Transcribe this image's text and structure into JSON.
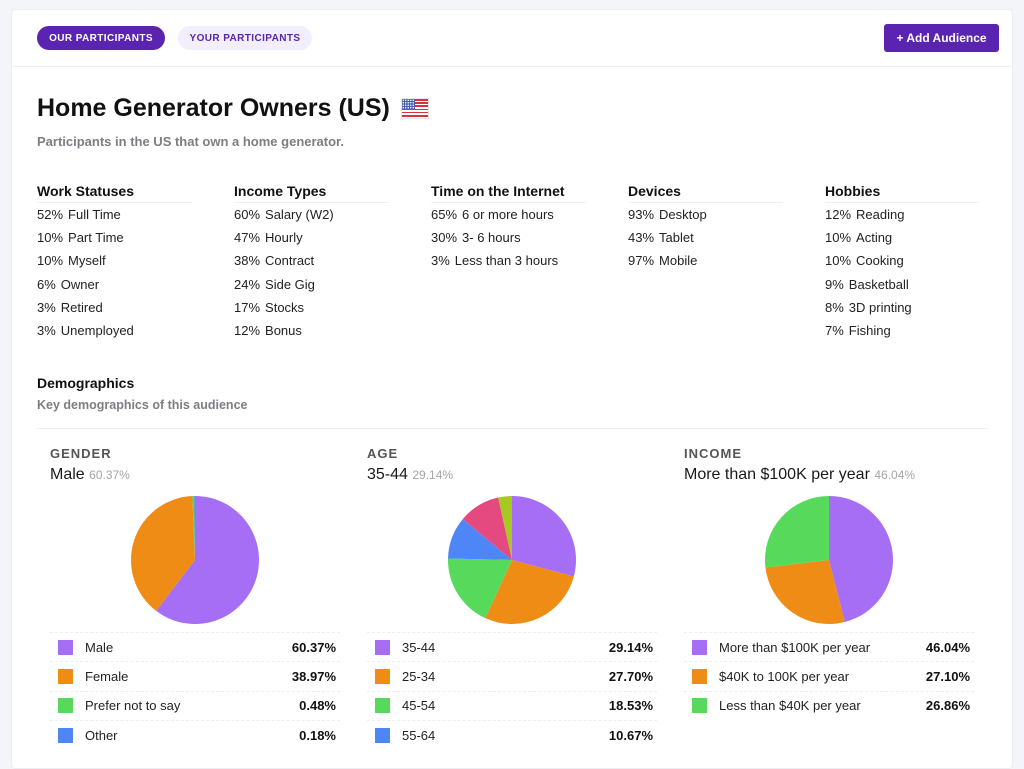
{
  "tabs": [
    {
      "label": "OUR PARTICIPANTS",
      "active": true
    },
    {
      "label": "YOUR PARTICIPANTS",
      "active": false
    }
  ],
  "add_audience_label": "+ Add Audience",
  "title": "Home Generator Owners (US)",
  "flag_icon": "us-flag",
  "subtitle": "Participants in the US that own a home generator.",
  "stats": [
    {
      "heading": "Work Statuses",
      "items": [
        {
          "pct": "52%",
          "label": "Full Time"
        },
        {
          "pct": "10%",
          "label": "Part Time"
        },
        {
          "pct": "10%",
          "label": "Myself"
        },
        {
          "pct": "6%",
          "label": "Owner"
        },
        {
          "pct": "3%",
          "label": "Retired"
        },
        {
          "pct": "3%",
          "label": "Unemployed"
        }
      ]
    },
    {
      "heading": "Income Types",
      "items": [
        {
          "pct": "60%",
          "label": "Salary (W2)"
        },
        {
          "pct": "47%",
          "label": "Hourly"
        },
        {
          "pct": "38%",
          "label": "Contract"
        },
        {
          "pct": "24%",
          "label": "Side Gig"
        },
        {
          "pct": "17%",
          "label": "Stocks"
        },
        {
          "pct": "12%",
          "label": "Bonus"
        }
      ]
    },
    {
      "heading": "Time on the Internet",
      "items": [
        {
          "pct": "65%",
          "label": "6 or more hours"
        },
        {
          "pct": "30%",
          "label": "3- 6 hours"
        },
        {
          "pct": "3%",
          "label": "Less than 3 hours"
        }
      ]
    },
    {
      "heading": "Devices",
      "items": [
        {
          "pct": "93%",
          "label": "Desktop"
        },
        {
          "pct": "43%",
          "label": "Tablet"
        },
        {
          "pct": "97%",
          "label": "Mobile"
        }
      ]
    },
    {
      "heading": "Hobbies",
      "items": [
        {
          "pct": "12%",
          "label": "Reading"
        },
        {
          "pct": "10%",
          "label": "Acting"
        },
        {
          "pct": "10%",
          "label": "Cooking"
        },
        {
          "pct": "9%",
          "label": "Basketball"
        },
        {
          "pct": "8%",
          "label": "3D printing"
        },
        {
          "pct": "7%",
          "label": "Fishing"
        }
      ]
    }
  ],
  "demographics": {
    "title": "Demographics",
    "subtitle": "Key demographics of this audience"
  },
  "chart_data": [
    {
      "type": "pie",
      "title": "GENDER",
      "top_label": "Male",
      "top_value": "60.37%",
      "categories": [
        "Male",
        "Female",
        "Prefer not to say",
        "Other"
      ],
      "values": [
        60.37,
        38.97,
        0.48,
        0.18
      ],
      "value_labels": [
        "60.37%",
        "38.97%",
        "0.48%",
        "0.18%"
      ],
      "colors": [
        "#a66ef5",
        "#ef8c16",
        "#57d95c",
        "#4f86f7"
      ]
    },
    {
      "type": "pie",
      "title": "AGE",
      "top_label": "35-44",
      "top_value": "29.14%",
      "categories": [
        "35-44",
        "25-34",
        "45-54",
        "55-64",
        "",
        ""
      ],
      "values": [
        29.14,
        27.7,
        18.53,
        10.67,
        10.5,
        3.46
      ],
      "value_labels": [
        "29.14%",
        "27.70%",
        "18.53%",
        "10.67%"
      ],
      "legend_visible_count": 4,
      "colors": [
        "#a66ef5",
        "#ef8c16",
        "#57d95c",
        "#4f86f7",
        "#e4497f",
        "#a8c923"
      ]
    },
    {
      "type": "pie",
      "title": "INCOME",
      "top_label": "More than $100K per year",
      "top_value": "46.04%",
      "categories": [
        "More than $100K per year",
        "$40K to 100K per year",
        "Less than $40K per year"
      ],
      "values": [
        46.04,
        27.1,
        26.86
      ],
      "value_labels": [
        "46.04%",
        "27.10%",
        "26.86%"
      ],
      "colors": [
        "#a66ef5",
        "#ef8c16",
        "#57d95c"
      ]
    }
  ]
}
